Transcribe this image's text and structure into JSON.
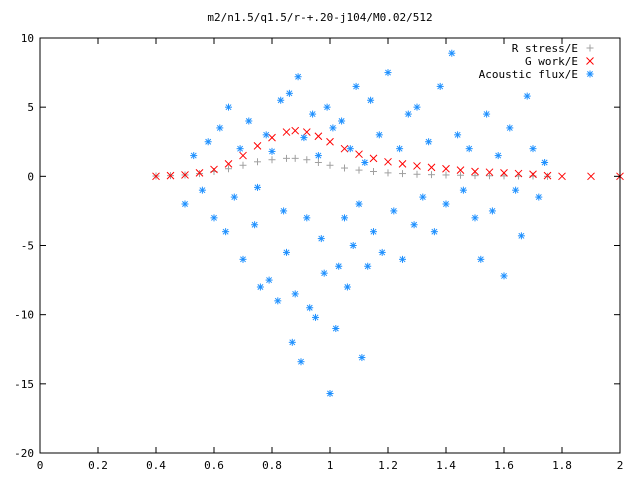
{
  "chart_data": {
    "type": "scatter",
    "title": "m2/n1.5/q1.5/r-+.20-j104/M0.02/512",
    "xlabel": "",
    "ylabel": "",
    "xlim": [
      0,
      2
    ],
    "ylim": [
      -20,
      10
    ],
    "x_ticks": [
      "0",
      "0.2",
      "0.4",
      "0.6",
      "0.8",
      "1",
      "1.2",
      "1.4",
      "1.6",
      "1.8",
      "2"
    ],
    "y_ticks": [
      "10",
      "5",
      "0",
      "-5",
      "-10",
      "-15",
      "-20"
    ],
    "grid": false,
    "legend_position": "top-right",
    "series": [
      {
        "name": "R stress/E",
        "marker": "plus",
        "color": "#a0a0a0",
        "points": [
          [
            0.4,
            0.02
          ],
          [
            0.45,
            0.05
          ],
          [
            0.5,
            0.1
          ],
          [
            0.55,
            0.2
          ],
          [
            0.6,
            0.35
          ],
          [
            0.65,
            0.55
          ],
          [
            0.7,
            0.8
          ],
          [
            0.75,
            1.05
          ],
          [
            0.8,
            1.2
          ],
          [
            0.85,
            1.3
          ],
          [
            0.88,
            1.3
          ],
          [
            0.92,
            1.2
          ],
          [
            0.96,
            1.0
          ],
          [
            1.0,
            0.8
          ],
          [
            1.05,
            0.6
          ],
          [
            1.1,
            0.45
          ],
          [
            1.15,
            0.35
          ],
          [
            1.2,
            0.25
          ],
          [
            1.25,
            0.2
          ],
          [
            1.3,
            0.15
          ],
          [
            1.35,
            0.12
          ],
          [
            1.4,
            0.1
          ],
          [
            1.45,
            0.08
          ],
          [
            1.5,
            0.05
          ],
          [
            1.55,
            0.04
          ],
          [
            1.6,
            0.03
          ],
          [
            1.65,
            0.02
          ],
          [
            1.7,
            0.02
          ],
          [
            1.75,
            0.0
          ]
        ]
      },
      {
        "name": "G work/E",
        "marker": "cross",
        "color": "#ff0000",
        "points": [
          [
            0.4,
            0.0
          ],
          [
            0.45,
            0.05
          ],
          [
            0.5,
            0.1
          ],
          [
            0.55,
            0.25
          ],
          [
            0.6,
            0.5
          ],
          [
            0.65,
            0.9
          ],
          [
            0.7,
            1.5
          ],
          [
            0.75,
            2.2
          ],
          [
            0.8,
            2.8
          ],
          [
            0.85,
            3.2
          ],
          [
            0.88,
            3.3
          ],
          [
            0.92,
            3.2
          ],
          [
            0.96,
            2.9
          ],
          [
            1.0,
            2.5
          ],
          [
            1.05,
            2.0
          ],
          [
            1.1,
            1.6
          ],
          [
            1.15,
            1.3
          ],
          [
            1.2,
            1.05
          ],
          [
            1.25,
            0.9
          ],
          [
            1.3,
            0.75
          ],
          [
            1.35,
            0.65
          ],
          [
            1.4,
            0.55
          ],
          [
            1.45,
            0.45
          ],
          [
            1.5,
            0.35
          ],
          [
            1.55,
            0.3
          ],
          [
            1.6,
            0.25
          ],
          [
            1.65,
            0.2
          ],
          [
            1.7,
            0.15
          ],
          [
            1.75,
            0.05
          ],
          [
            1.8,
            0.0
          ],
          [
            1.9,
            0.0
          ],
          [
            2.0,
            0.0
          ]
        ]
      },
      {
        "name": "Acoustic flux/E",
        "marker": "star",
        "color": "#1e90ff",
        "points": [
          [
            0.5,
            -2.0
          ],
          [
            0.53,
            1.5
          ],
          [
            0.56,
            -1.0
          ],
          [
            0.58,
            2.5
          ],
          [
            0.6,
            -3.0
          ],
          [
            0.62,
            3.5
          ],
          [
            0.64,
            -4.0
          ],
          [
            0.65,
            5.0
          ],
          [
            0.67,
            -1.5
          ],
          [
            0.69,
            2.0
          ],
          [
            0.7,
            -6.0
          ],
          [
            0.72,
            4.0
          ],
          [
            0.74,
            -3.5
          ],
          [
            0.75,
            -0.8
          ],
          [
            0.76,
            -8.0
          ],
          [
            0.78,
            3.0
          ],
          [
            0.79,
            -7.5
          ],
          [
            0.8,
            1.8
          ],
          [
            0.82,
            -9.0
          ],
          [
            0.83,
            5.5
          ],
          [
            0.84,
            -2.5
          ],
          [
            0.85,
            -5.5
          ],
          [
            0.86,
            6.0
          ],
          [
            0.87,
            -12.0
          ],
          [
            0.88,
            -8.5
          ],
          [
            0.89,
            7.2
          ],
          [
            0.9,
            -13.4
          ],
          [
            0.91,
            2.8
          ],
          [
            0.92,
            -3.0
          ],
          [
            0.93,
            -9.5
          ],
          [
            0.94,
            4.5
          ],
          [
            0.95,
            -10.2
          ],
          [
            0.96,
            1.5
          ],
          [
            0.97,
            -4.5
          ],
          [
            0.98,
            -7.0
          ],
          [
            0.99,
            5.0
          ],
          [
            1.0,
            -15.7
          ],
          [
            1.01,
            3.5
          ],
          [
            1.02,
            -11.0
          ],
          [
            1.03,
            -6.5
          ],
          [
            1.04,
            4.0
          ],
          [
            1.05,
            -3.0
          ],
          [
            1.06,
            -8.0
          ],
          [
            1.07,
            2.0
          ],
          [
            1.08,
            -5.0
          ],
          [
            1.09,
            6.5
          ],
          [
            1.1,
            -2.0
          ],
          [
            1.11,
            -13.1
          ],
          [
            1.12,
            1.0
          ],
          [
            1.13,
            -6.5
          ],
          [
            1.14,
            5.5
          ],
          [
            1.15,
            -4.0
          ],
          [
            1.17,
            3.0
          ],
          [
            1.18,
            -5.5
          ],
          [
            1.2,
            7.5
          ],
          [
            1.22,
            -2.5
          ],
          [
            1.24,
            2.0
          ],
          [
            1.25,
            -6.0
          ],
          [
            1.27,
            4.5
          ],
          [
            1.29,
            -3.5
          ],
          [
            1.3,
            5.0
          ],
          [
            1.32,
            -1.5
          ],
          [
            1.34,
            2.5
          ],
          [
            1.36,
            -4.0
          ],
          [
            1.38,
            6.5
          ],
          [
            1.4,
            -2.0
          ],
          [
            1.42,
            8.9
          ],
          [
            1.44,
            3.0
          ],
          [
            1.46,
            -1.0
          ],
          [
            1.48,
            2.0
          ],
          [
            1.5,
            -3.0
          ],
          [
            1.52,
            -6.0
          ],
          [
            1.54,
            4.5
          ],
          [
            1.56,
            -2.5
          ],
          [
            1.58,
            1.5
          ],
          [
            1.6,
            -7.2
          ],
          [
            1.62,
            3.5
          ],
          [
            1.64,
            -1.0
          ],
          [
            1.66,
            -4.3
          ],
          [
            1.68,
            5.8
          ],
          [
            1.7,
            2.0
          ],
          [
            1.72,
            -1.5
          ],
          [
            1.74,
            1.0
          ]
        ]
      }
    ]
  }
}
